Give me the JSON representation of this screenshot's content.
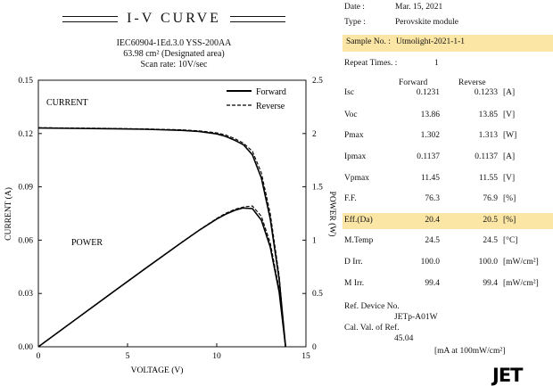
{
  "header": {
    "title": "I-V  CURVE",
    "line1": "IEC60904-1Ed.3.0  YSS-200AA",
    "line2": "63.98 cm² (Designated area)",
    "line3": "Scan rate: 10V/sec"
  },
  "chart_data": {
    "type": "line",
    "xlabel": "VOLTAGE (V)",
    "ylabel_left": "CURRENT (A)",
    "ylabel_right": "POWER (W)",
    "xlim": [
      0,
      15
    ],
    "ylim_left": [
      0,
      0.15
    ],
    "ylim_right": [
      0,
      2.5
    ],
    "x_ticks": [
      "0",
      "5",
      "10",
      "15"
    ],
    "y_left_ticks": [
      "0.00",
      "0.03",
      "0.06",
      "0.09",
      "0.12",
      "0.15"
    ],
    "y_right_ticks": [
      "0",
      "0.5",
      "1",
      "1.5",
      "2",
      "2.5"
    ],
    "annotations": {
      "current": "CURRENT",
      "power": "POWER"
    },
    "legend": {
      "placement": "top-right",
      "entries": [
        "Forward",
        "Reverse"
      ]
    },
    "grid": false,
    "series": [
      {
        "name": "Forward",
        "quantity": "current",
        "axis": "left",
        "style": "solid",
        "x": [
          0,
          2,
          4,
          6,
          8,
          9,
          10,
          10.5,
          11,
          11.5,
          12,
          12.5,
          13,
          13.5,
          13.86
        ],
        "y": [
          0.1231,
          0.1229,
          0.1227,
          0.1224,
          0.1218,
          0.1212,
          0.1198,
          0.1184,
          0.1163,
          0.1137,
          0.108,
          0.095,
          0.072,
          0.038,
          0.0
        ]
      },
      {
        "name": "Reverse",
        "quantity": "current",
        "axis": "left",
        "style": "dashed",
        "x": [
          0,
          2,
          4,
          6,
          8,
          9,
          10,
          10.5,
          11,
          11.5,
          12,
          12.5,
          13,
          13.5,
          13.85
        ],
        "y": [
          0.1233,
          0.1231,
          0.1229,
          0.1226,
          0.1221,
          0.1215,
          0.1204,
          0.1192,
          0.1172,
          0.1146,
          0.11,
          0.098,
          0.075,
          0.04,
          0.0
        ]
      },
      {
        "name": "Forward",
        "quantity": "power",
        "axis": "right",
        "style": "solid",
        "x": [
          0,
          2,
          4,
          6,
          8,
          9,
          10,
          10.5,
          11,
          11.45,
          12,
          12.5,
          13,
          13.5,
          13.86
        ],
        "y": [
          0,
          0.246,
          0.491,
          0.734,
          0.974,
          1.091,
          1.198,
          1.243,
          1.279,
          1.302,
          1.296,
          1.188,
          0.936,
          0.513,
          0
        ]
      },
      {
        "name": "Reverse",
        "quantity": "power",
        "axis": "right",
        "style": "dashed",
        "x": [
          0,
          2,
          4,
          6,
          8,
          9,
          10,
          10.5,
          11,
          11.55,
          12,
          12.5,
          13,
          13.5,
          13.85
        ],
        "y": [
          0,
          0.246,
          0.492,
          0.736,
          0.977,
          1.094,
          1.204,
          1.252,
          1.289,
          1.313,
          1.32,
          1.225,
          0.975,
          0.54,
          0
        ]
      }
    ]
  },
  "panel": {
    "date_label": "Date :",
    "date_value": "Mar. 15, 2021",
    "type_label": "Type :",
    "type_value": "Perovskite module",
    "sample_label": "Sample No. :",
    "sample_value": "Utmolight-2021-1-1",
    "repeat_label": "Repeat Times. :",
    "repeat_value": "1",
    "col_forward": "Forward",
    "col_reverse": "Reverse",
    "rows": [
      {
        "label": "Isc",
        "forward": "0.1231",
        "reverse": "0.1233",
        "unit": "[A]"
      },
      {
        "label": "Voc",
        "forward": "13.86",
        "reverse": "13.85",
        "unit": "[V]"
      },
      {
        "label": "Pmax",
        "forward": "1.302",
        "reverse": "1.313",
        "unit": "[W]"
      },
      {
        "label": "Ipmax",
        "forward": "0.1137",
        "reverse": "0.1137",
        "unit": "[A]"
      },
      {
        "label": "Vpmax",
        "forward": "11.45",
        "reverse": "11.55",
        "unit": "[V]"
      },
      {
        "label": "F.F.",
        "forward": "76.3",
        "reverse": "76.9",
        "unit": "[%]"
      },
      {
        "label": "Eff.(Da)",
        "forward": "20.4",
        "reverse": "20.5",
        "unit": "[%]"
      },
      {
        "label": "M.Temp",
        "forward": "24.5",
        "reverse": "24.5",
        "unit": "[°C]"
      },
      {
        "label": "D Irr.",
        "forward": "100.0",
        "reverse": "100.0",
        "unit": "[mW/cm²]"
      },
      {
        "label": "M Irr.",
        "forward": "99.4",
        "reverse": "99.4",
        "unit": "[mW/cm²]"
      }
    ],
    "ref_device_label": "Ref. Device No.",
    "ref_device_value": "JETp-A01W",
    "cal_label": "Cal. Val. of Ref.",
    "cal_value": "45.04",
    "cal_unit": "[mA at 100mW/cm²]"
  },
  "logo": "JET",
  "colors": {
    "highlight": "#fbe6a6",
    "curve": "#000000"
  }
}
